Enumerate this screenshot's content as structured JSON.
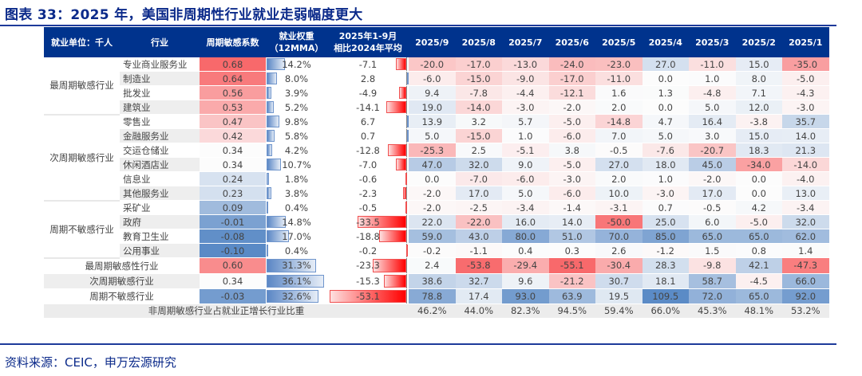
{
  "title": "图表 33：2025 年，美国非周期性行业就业走弱幅度更大",
  "source": "资料来源：CEIC，申万宏源研究",
  "chart_data": {
    "type": "table",
    "headers": {
      "group": "就业单位：千人",
      "industry": "行业",
      "coef": "周期敏感系数",
      "weight_l1": "就业权重",
      "weight_l2": "（12MMA）",
      "change_l1": "2025年1-9月",
      "change_l2": "相比2024年平均",
      "months": [
        "2025/9",
        "2025/8",
        "2025/7",
        "2025/6",
        "2025/5",
        "2025/4",
        "2025/3",
        "2025/2",
        "2025/1"
      ]
    },
    "groups": [
      {
        "label": "最周期敏感行业",
        "rows": 4
      },
      {
        "label": "次周期敏感行业",
        "rows": 6
      },
      {
        "label": "周期不敏感行业",
        "rows": 4
      }
    ],
    "rows": [
      {
        "name": "专业商业服务业",
        "coef": "0.68",
        "weight": "14.2%",
        "change": "-7.1",
        "months": [
          "-20.0",
          "-17.0",
          "-13.0",
          "-24.0",
          "-23.0",
          "27.0",
          "-11.0",
          "15.0",
          "-35.0"
        ]
      },
      {
        "name": "制造业",
        "coef": "0.64",
        "weight": "8.0%",
        "change": "2.8",
        "months": [
          "-6.0",
          "-15.0",
          "-9.0",
          "-17.0",
          "-11.0",
          "0.0",
          "1.0",
          "8.0",
          "-5.0"
        ]
      },
      {
        "name": "批发业",
        "coef": "0.56",
        "weight": "3.9%",
        "change": "-4.9",
        "months": [
          "9.4",
          "-7.8",
          "-4.4",
          "-12.1",
          "1.6",
          "1.3",
          "-4.8",
          "7.1",
          "-4.3"
        ]
      },
      {
        "name": "建筑业",
        "coef": "0.53",
        "weight": "5.2%",
        "change": "-14.1",
        "months": [
          "19.0",
          "-14.0",
          "-3.0",
          "-2.0",
          "2.0",
          "0.0",
          "5.0",
          "12.0",
          "-3.0"
        ]
      },
      {
        "name": "零售业",
        "coef": "0.47",
        "weight": "9.8%",
        "change": "6.7",
        "months": [
          "13.9",
          "3.2",
          "5.7",
          "-5.0",
          "-14.8",
          "4.7",
          "16.4",
          "-3.8",
          "35.7"
        ]
      },
      {
        "name": "金融服务业",
        "coef": "0.42",
        "weight": "5.8%",
        "change": "0.7",
        "months": [
          "5.0",
          "-15.0",
          "1.0",
          "-6.0",
          "7.0",
          "5.0",
          "3.0",
          "15.0",
          "14.0"
        ]
      },
      {
        "name": "交运仓储业",
        "coef": "0.34",
        "weight": "4.2%",
        "change": "-12.8",
        "months": [
          "-25.3",
          "2.5",
          "-5.1",
          "3.8",
          "-0.5",
          "-7.6",
          "-20.7",
          "18.3",
          "21.3"
        ]
      },
      {
        "name": "休闲酒店业",
        "coef": "0.34",
        "weight": "10.7%",
        "change": "-7.0",
        "months": [
          "47.0",
          "32.0",
          "9.0",
          "-5.0",
          "27.0",
          "18.0",
          "45.0",
          "-34.0",
          "-14.0"
        ]
      },
      {
        "name": "信息业",
        "coef": "0.24",
        "weight": "1.8%",
        "change": "-0.6",
        "months": [
          "0.0",
          "-7.0",
          "-6.0",
          "-3.0",
          "2.0",
          "1.0",
          "-2.0",
          "0.0",
          "-4.0"
        ]
      },
      {
        "name": "其他服务业",
        "coef": "0.23",
        "weight": "3.8%",
        "change": "-2.3",
        "months": [
          "-2.0",
          "17.0",
          "5.0",
          "-6.0",
          "10.0",
          "-3.0",
          "17.0",
          "0.0",
          "13.0"
        ]
      },
      {
        "name": "采矿业",
        "coef": "0.09",
        "weight": "0.4%",
        "change": "-0.5",
        "months": [
          "-2.0",
          "-2.5",
          "-3.4",
          "-1.4",
          "-3.1",
          "0.7",
          "-0.5",
          "4.2",
          "-3.4"
        ]
      },
      {
        "name": "政府",
        "coef": "-0.01",
        "weight": "14.8%",
        "change": "-33.5",
        "months": [
          "22.0",
          "-22.0",
          "16.0",
          "14.0",
          "-50.0",
          "25.0",
          "6.0",
          "-5.0",
          "32.0"
        ]
      },
      {
        "name": "教育卫生业",
        "coef": "-0.08",
        "weight": "17.0%",
        "change": "-18.8",
        "months": [
          "59.0",
          "43.0",
          "80.0",
          "51.0",
          "70.0",
          "85.0",
          "65.0",
          "65.0",
          "62.0"
        ]
      },
      {
        "name": "公用事业",
        "coef": "-0.10",
        "weight": "0.4%",
        "change": "-0.2",
        "months": [
          "-0.2",
          "-1.1",
          "0.4",
          "0.3",
          "2.6",
          "-1.2",
          "1.5",
          "0.8",
          "1.4"
        ]
      }
    ],
    "summary": [
      {
        "name": "最周期敏感性行业",
        "coef": "0.60",
        "weight": "31.3%",
        "change": "-23.3",
        "months": [
          "2.4",
          "-53.8",
          "-29.4",
          "-55.1",
          "-30.4",
          "28.3",
          "-9.8",
          "42.1",
          "-47.3"
        ]
      },
      {
        "name": "次周期敏感行业",
        "coef": "0.34",
        "weight": "36.1%",
        "change": "-15.3",
        "months": [
          "38.6",
          "32.7",
          "9.6",
          "-21.2",
          "30.7",
          "18.1",
          "58.7",
          "-4.5",
          "66.0"
        ]
      },
      {
        "name": "周期不敏感行业",
        "coef": "-0.03",
        "weight": "32.6%",
        "change": "-53.1",
        "months": [
          "78.8",
          "17.4",
          "93.0",
          "63.9",
          "19.5",
          "109.5",
          "72.0",
          "65.0",
          "92.0"
        ]
      }
    ],
    "ratio": {
      "label": "非周期敏感行业占就业正增长行业比重",
      "values": [
        "46.2%",
        "44.0%",
        "82.3%",
        "94.5%",
        "59.4%",
        "66.0%",
        "45.3%",
        "48.1%",
        "53.2%"
      ]
    },
    "colors": {
      "negative": "#f8696b",
      "positive": "#5a8ac6",
      "header": "#00338d",
      "title": "#0b2a8a"
    }
  }
}
